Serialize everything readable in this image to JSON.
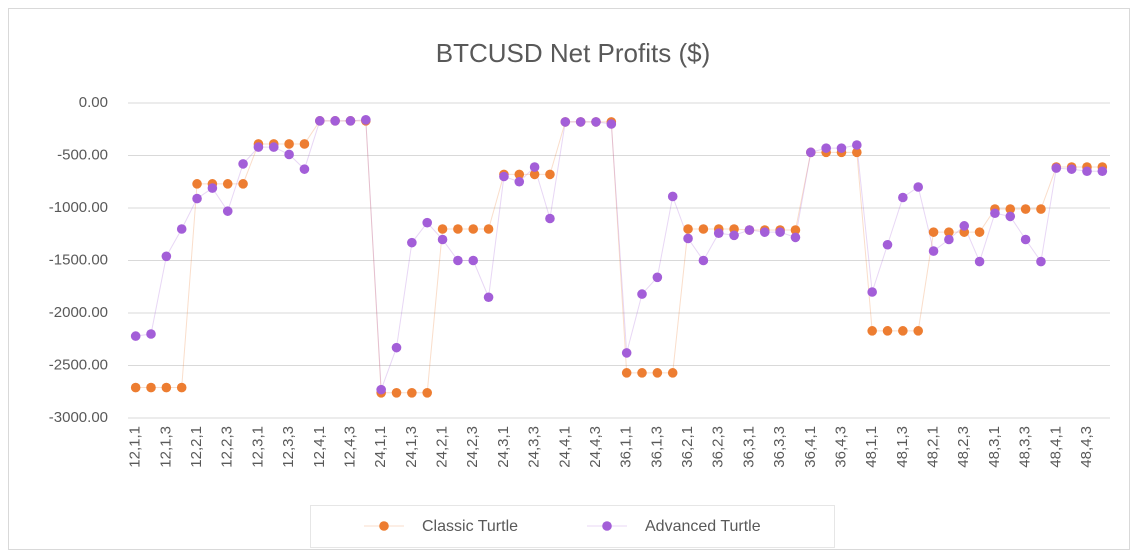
{
  "chart_data": {
    "type": "line",
    "title": "BTCUSD Net Profits ($)",
    "categories": [
      "12,1,1",
      null,
      "12,1,3",
      null,
      "12,2,1",
      null,
      "12,2,3",
      null,
      "12,3,1",
      null,
      "12,3,3",
      null,
      "12,4,1",
      null,
      "12,4,3",
      null,
      "24,1,1",
      null,
      "24,1,3",
      null,
      "24,2,1",
      null,
      "24,2,3",
      null,
      "24,3,1",
      null,
      "24,3,3",
      null,
      "24,4,1",
      null,
      "24,4,3",
      null,
      "36,1,1",
      null,
      "36,1,3",
      null,
      "36,2,1",
      null,
      "36,2,3",
      null,
      "36,3,1",
      null,
      "36,3,3",
      null,
      "36,4,1",
      null,
      "36,4,3",
      null,
      "48,1,1",
      null,
      "48,1,3",
      null,
      "48,2,1",
      null,
      "48,2,3",
      null,
      "48,3,1",
      null,
      "48,3,3",
      null,
      "48,4,1",
      null,
      "48,4,3",
      null
    ],
    "series": [
      {
        "name": "Classic Turtle",
        "color": "#ed7d31",
        "values": [
          -2710,
          -2710,
          -2710,
          -2710,
          -770,
          -770,
          -770,
          -770,
          -390,
          -390,
          -390,
          -390,
          -170,
          -170,
          -170,
          -170,
          -2760,
          -2760,
          -2760,
          -2760,
          -1200,
          -1200,
          -1200,
          -1200,
          -680,
          -680,
          -680,
          -680,
          -180,
          -180,
          -180,
          -180,
          -2570,
          -2570,
          -2570,
          -2570,
          -1200,
          -1200,
          -1200,
          -1200,
          -1210,
          -1210,
          -1210,
          -1210,
          -470,
          -470,
          -470,
          -470,
          -2170,
          -2170,
          -2170,
          -2170,
          -1230,
          -1230,
          -1230,
          -1230,
          -1010,
          -1010,
          -1010,
          -1010,
          -610,
          -610,
          -610,
          -610
        ]
      },
      {
        "name": "Advanced Turtle",
        "color": "#a35ed8",
        "values": [
          -2220,
          -2200,
          -1460,
          -1200,
          -910,
          -810,
          -1030,
          -580,
          -420,
          -420,
          -490,
          -630,
          -170,
          -170,
          -170,
          -160,
          -2730,
          -2330,
          -1330,
          -1140,
          -1300,
          -1500,
          -1500,
          -1850,
          -700,
          -750,
          -610,
          -1100,
          -180,
          -180,
          -180,
          -200,
          -2380,
          -1820,
          -1660,
          -890,
          -1290,
          -1500,
          -1240,
          -1260,
          -1210,
          -1230,
          -1230,
          -1280,
          -470,
          -430,
          -430,
          -400,
          -1800,
          -1350,
          -900,
          -800,
          -1410,
          -1300,
          -1170,
          -1510,
          -1050,
          -1080,
          -1300,
          -1510,
          -620,
          -630,
          -650,
          -650
        ]
      }
    ],
    "ylim": [
      -3000,
      0
    ],
    "yticks": [
      {
        "value": 0,
        "label": "0.00"
      },
      {
        "value": -500,
        "label": "-500.00"
      },
      {
        "value": -1000,
        "label": "-1000.00"
      },
      {
        "value": -1500,
        "label": "-1500.00"
      },
      {
        "value": -2000,
        "label": "-2000.00"
      },
      {
        "value": -2500,
        "label": "-2500.00"
      },
      {
        "value": -3000,
        "label": "-3000.00"
      }
    ],
    "grid": true,
    "legend": "bottom"
  }
}
